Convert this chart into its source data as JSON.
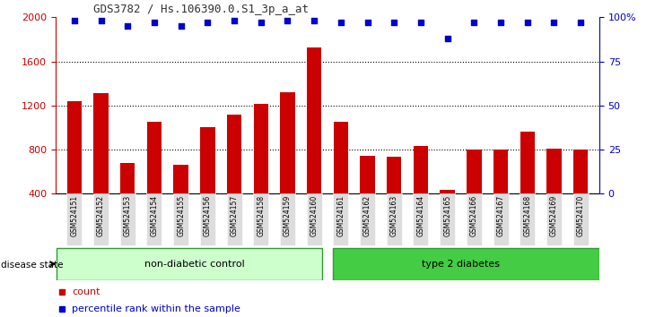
{
  "title": "GDS3782 / Hs.106390.0.S1_3p_a_at",
  "samples": [
    "GSM524151",
    "GSM524152",
    "GSM524153",
    "GSM524154",
    "GSM524155",
    "GSM524156",
    "GSM524157",
    "GSM524158",
    "GSM524159",
    "GSM524160",
    "GSM524161",
    "GSM524162",
    "GSM524163",
    "GSM524164",
    "GSM524165",
    "GSM524166",
    "GSM524167",
    "GSM524168",
    "GSM524169",
    "GSM524170"
  ],
  "counts": [
    1240,
    1310,
    680,
    1050,
    660,
    1000,
    1120,
    1210,
    1320,
    1730,
    1050,
    740,
    730,
    830,
    430,
    800,
    800,
    960,
    810,
    800
  ],
  "percentile_ranks": [
    98,
    98,
    95,
    97,
    95,
    97,
    98,
    97,
    98,
    98,
    97,
    97,
    97,
    97,
    88,
    97,
    97,
    97,
    97,
    97
  ],
  "ylim_left": [
    400,
    2000
  ],
  "ylim_right": [
    0,
    100
  ],
  "yticks_left": [
    400,
    800,
    1200,
    1600,
    2000
  ],
  "yticks_right": [
    0,
    25,
    50,
    75,
    100
  ],
  "ytick_labels_right": [
    "0",
    "25",
    "50",
    "75",
    "100%"
  ],
  "group1_label": "non-diabetic control",
  "group2_label": "type 2 diabetes",
  "group1_count": 10,
  "group2_count": 10,
  "disease_state_label": "disease state",
  "bar_color": "#cc0000",
  "dot_color": "#0000cc",
  "group1_bg": "#ccffcc",
  "group2_bg": "#44cc44",
  "xticklabel_bg": "#dddddd",
  "legend_count_color": "#cc0000",
  "legend_pct_color": "#0000cc",
  "grid_color": "#555555",
  "title_color": "#333333",
  "spine_color": "#000000",
  "group_border_color": "#339933"
}
